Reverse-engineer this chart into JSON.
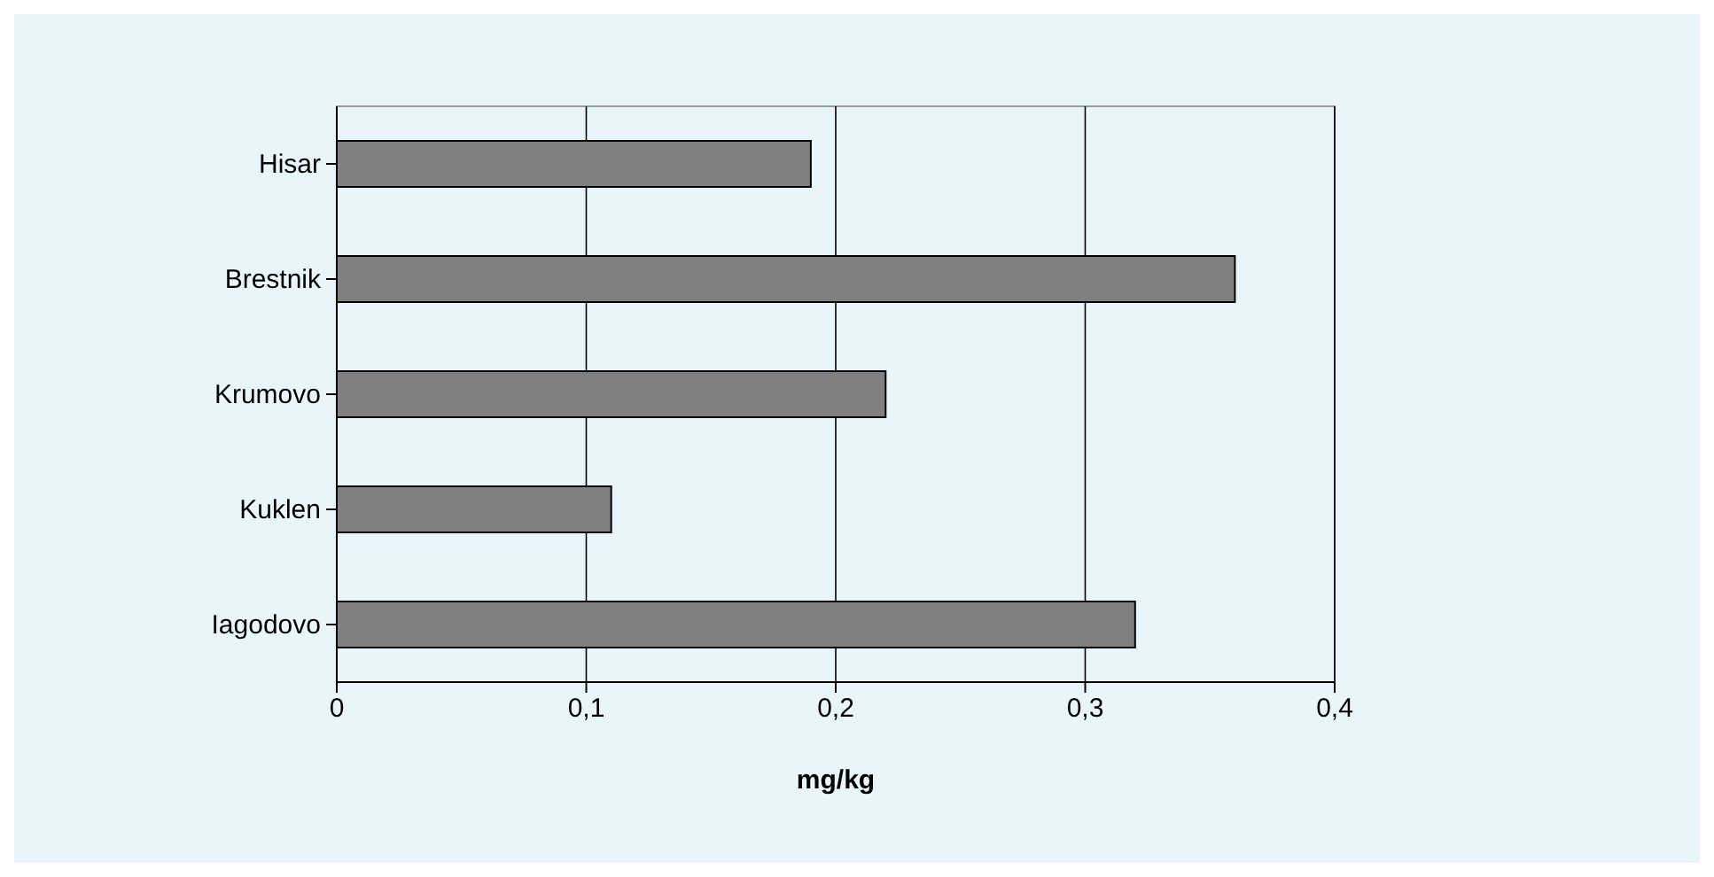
{
  "chart_data": {
    "type": "bar",
    "orientation": "horizontal",
    "categories": [
      "Hisar",
      "Brestnik",
      "Krumovo",
      "Kuklen",
      "Iagodovo"
    ],
    "values": [
      0.19,
      0.36,
      0.22,
      0.11,
      0.32
    ],
    "color": "#808080",
    "xlim": [
      0,
      0.4
    ],
    "xticks": [
      {
        "value": 0,
        "label": "0"
      },
      {
        "value": 0.1,
        "label": "0,1"
      },
      {
        "value": 0.2,
        "label": "0,2"
      },
      {
        "value": 0.3,
        "label": "0,3"
      },
      {
        "value": 0.4,
        "label": "0,4"
      }
    ],
    "xlabel": "mg/kg",
    "grid": "x"
  }
}
